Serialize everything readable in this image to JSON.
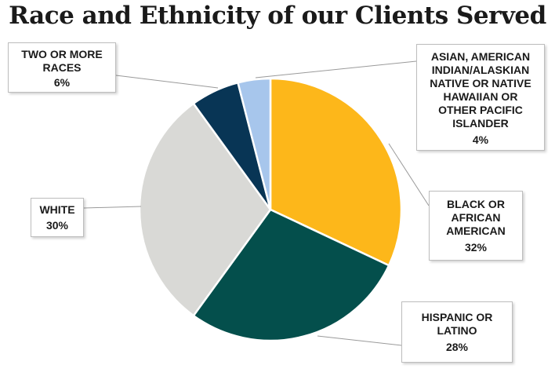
{
  "title": "Race and Ethnicity of our Clients Served",
  "chart_data": {
    "type": "pie",
    "title": "Race and Ethnicity of our Clients Served",
    "slices": [
      {
        "label": "BLACK OR AFRICAN AMERICAN",
        "label_lines": "BLACK OR\nAFRICAN\nAMERICAN",
        "pct_text": "32%",
        "value": 32,
        "color": "#FDB71A"
      },
      {
        "label": "HISPANIC OR LATINO",
        "label_lines": "HISPANIC OR\nLATINO",
        "pct_text": "28%",
        "value": 28,
        "color": "#044F4C"
      },
      {
        "label": "WHITE",
        "label_lines": "WHITE",
        "pct_text": "30%",
        "value": 30,
        "color": "#D9D9D6"
      },
      {
        "label": "TWO OR MORE RACES",
        "label_lines": "TWO OR MORE\nRACES",
        "pct_text": "6%",
        "value": 6,
        "color": "#083555"
      },
      {
        "label": "ASIAN, AMERICAN INDIAN/ALASKIAN NATIVE OR NATIVE HAWAIIAN OR OTHER PACIFIC ISLANDER",
        "label_lines": "ASIAN, AMERICAN\nINDIAN/ALASKIAN\nNATIVE OR NATIVE\nHAWAIIAN OR\nOTHER PACIFIC\nISLANDER",
        "pct_text": "4%",
        "value": 4,
        "color": "#A7C6EC"
      }
    ],
    "start_angle": "12 o'clock",
    "direction": "clockwise",
    "legend": "callout boxes"
  }
}
